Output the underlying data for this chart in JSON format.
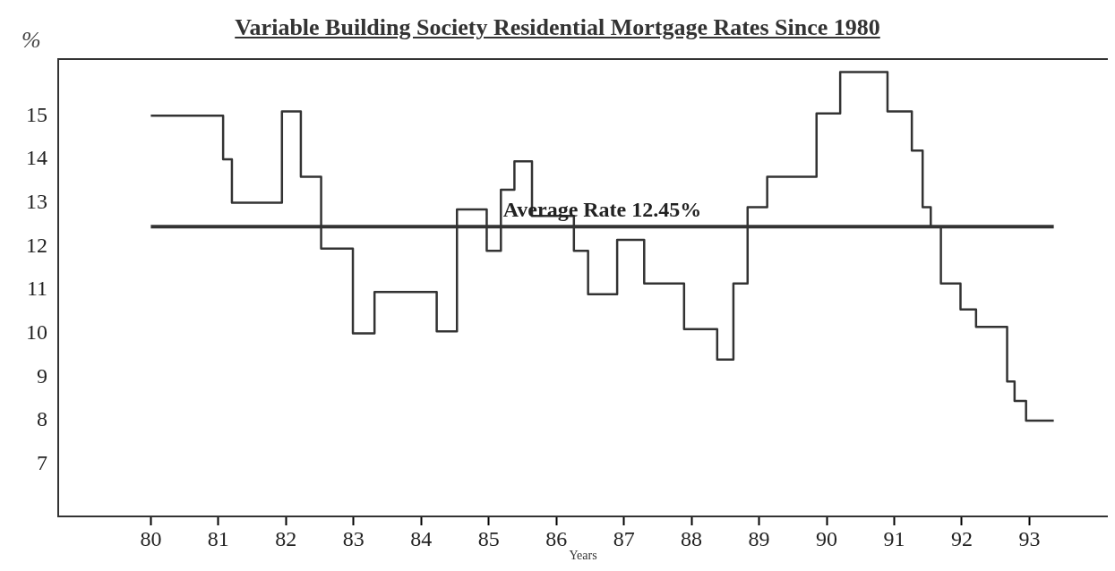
{
  "chart_data": {
    "type": "step",
    "title": "Variable Building Society Residential Mortgage Rates Since 1980",
    "xlabel": "Years",
    "ylabel": "%",
    "color": "#333333",
    "x": [
      80,
      81.07,
      81.2,
      81.94,
      82.22,
      82.52,
      82.99,
      83.31,
      84.23,
      84.53,
      84.97,
      85.18,
      85.38,
      85.64,
      86.26,
      86.47,
      86.9,
      87.3,
      87.89,
      88.38,
      88.62,
      88.83,
      89.12,
      89.85,
      90.2,
      90.9,
      91.26,
      91.42,
      91.54,
      91.69,
      91.98,
      92.21,
      92.67,
      92.78,
      92.95,
      93.36
    ],
    "values": [
      15,
      14,
      13,
      15.1,
      13.6,
      11.95,
      10,
      10.95,
      10.05,
      12.85,
      11.9,
      13.3,
      13.95,
      12.7,
      11.9,
      10.9,
      12.15,
      11.15,
      10.1,
      9.4,
      11.15,
      12.9,
      13.6,
      15.05,
      16,
      15.1,
      14.2,
      12.9,
      12.45,
      11.15,
      10.55,
      10.15,
      8.9,
      8.45,
      8,
      8
    ],
    "xlim": [
      78.63,
      94.16
    ],
    "ylim": [
      5.8,
      16.3
    ],
    "xticks": [
      80,
      81,
      82,
      83,
      84,
      85,
      86,
      87,
      88,
      89,
      90,
      91,
      92,
      93
    ],
    "yticks": [
      7,
      8,
      9,
      10,
      11,
      12,
      13,
      14,
      15
    ],
    "ref_lines": [
      {
        "axis": "y",
        "value": 12.45,
        "label": "Average Rate 12.45%",
        "color": "#333333"
      }
    ]
  }
}
